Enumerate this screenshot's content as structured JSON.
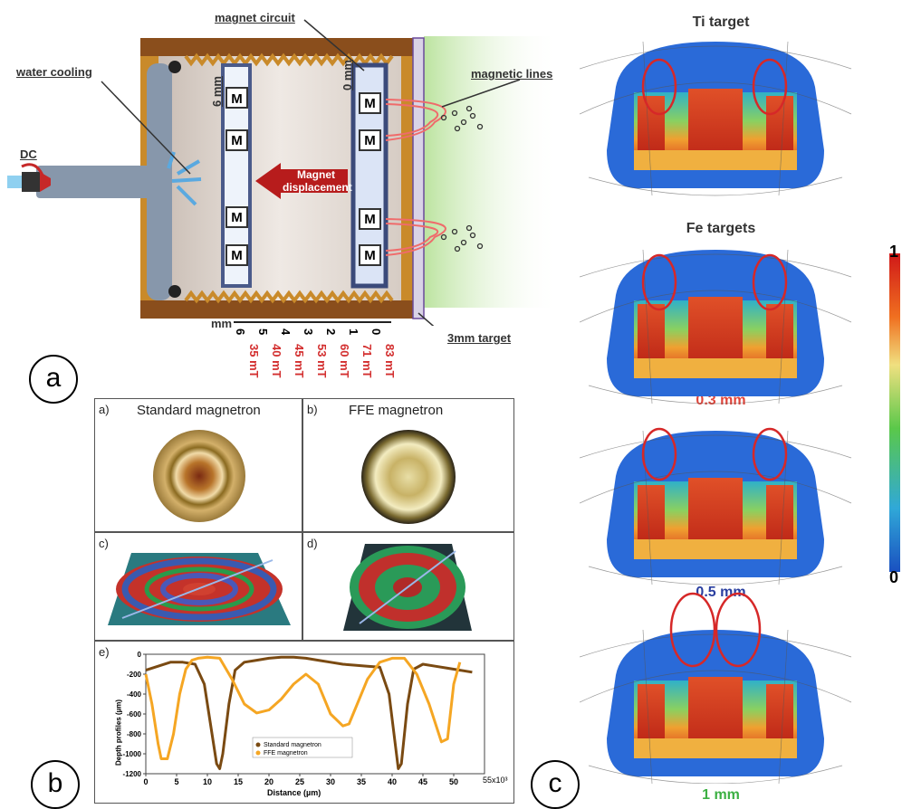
{
  "panel_a": {
    "circle_label": "a",
    "labels": {
      "water_cooling": "water cooling",
      "magnet_circuit": "magnet circuit",
      "magnetic_lines": "magnetic lines",
      "dc": "DC",
      "target": "3mm target",
      "displacement_line1": "Magnet",
      "displacement_line2": "displacement",
      "six_mm": "6 mm",
      "zero_mm": "0 mm",
      "magnet_letter": "M",
      "mm_unit": "mm"
    },
    "scale": [
      {
        "mm": "6",
        "mT": "35 mT"
      },
      {
        "mm": "5",
        "mT": "40 mT"
      },
      {
        "mm": "4",
        "mT": "45 mT"
      },
      {
        "mm": "3",
        "mT": "53 mT"
      },
      {
        "mm": "2",
        "mT": "60 mT"
      },
      {
        "mm": "1",
        "mT": "71 mT"
      },
      {
        "mm": "0",
        "mT": "83 mT"
      }
    ]
  },
  "panel_b": {
    "circle_label": "b",
    "sub_a": {
      "letter": "a)",
      "title": "Standard magnetron"
    },
    "sub_b": {
      "letter": "b)",
      "title": "FFE magnetron"
    },
    "sub_c": {
      "letter": "c)"
    },
    "sub_d": {
      "letter": "d)"
    },
    "sub_e": {
      "letter": "e)"
    }
  },
  "chart_data": {
    "type": "line",
    "xlabel": "Distance (µm)",
    "ylabel": "Depth profiles (µm)",
    "x_multiplier_label": "55x10³",
    "xlim": [
      0,
      55000
    ],
    "ylim": [
      -1200,
      0
    ],
    "xticks": [
      "0",
      "5",
      "10",
      "15",
      "20",
      "25",
      "30",
      "35",
      "40",
      "45",
      "50"
    ],
    "yticks": [
      "0",
      "-200",
      "-400",
      "-600",
      "-800",
      "-1000",
      "-1200"
    ],
    "series": [
      {
        "name": "Standard magnetron",
        "color": "#7a4a12",
        "x": [
          0,
          2000,
          4000,
          6000,
          8000,
          9500,
          10500,
          11500,
          12000,
          12500,
          13500,
          14500,
          16000,
          18000,
          20000,
          22000,
          24000,
          26000,
          28000,
          30000,
          32000,
          34000,
          36000,
          38000,
          39500,
          40500,
          41000,
          41500,
          42500,
          43500,
          45000,
          47000,
          49000,
          51000,
          53000
        ],
        "y": [
          -160,
          -120,
          -80,
          -80,
          -100,
          -300,
          -700,
          -1100,
          -1150,
          -1000,
          -500,
          -160,
          -80,
          -60,
          -40,
          -30,
          -30,
          -40,
          -60,
          -80,
          -100,
          -110,
          -120,
          -130,
          -400,
          -900,
          -1150,
          -1100,
          -500,
          -150,
          -100,
          -120,
          -140,
          -160,
          -180
        ]
      },
      {
        "name": "FFE magnetron",
        "color": "#f5a623",
        "x": [
          0,
          1000,
          2000,
          2500,
          3500,
          4500,
          5500,
          6500,
          7500,
          8500,
          10000,
          12000,
          14000,
          16000,
          18000,
          20000,
          22000,
          24000,
          26000,
          28000,
          30000,
          32000,
          33000,
          34000,
          36000,
          38000,
          40000,
          42000,
          44000,
          46000,
          48000,
          49000,
          50000,
          51000
        ],
        "y": [
          -200,
          -500,
          -900,
          -1050,
          -1050,
          -800,
          -400,
          -150,
          -60,
          -40,
          -30,
          -40,
          -250,
          -500,
          -590,
          -560,
          -450,
          -300,
          -200,
          -300,
          -600,
          -720,
          -700,
          -550,
          -250,
          -80,
          -40,
          -40,
          -200,
          -500,
          -880,
          -850,
          -300,
          -80
        ]
      }
    ]
  },
  "panel_c": {
    "circle_label": "c",
    "titles": {
      "ti": "Ti target",
      "fe": "Fe targets",
      "t1": "0.3 mm",
      "t2": "0.5 mm",
      "t3": "1 mm"
    },
    "colorbar": {
      "max": "1",
      "min": "0"
    },
    "colors": {
      "t1": "#e0443a",
      "t2": "#2a3fa0",
      "t3": "#3cb043"
    }
  }
}
